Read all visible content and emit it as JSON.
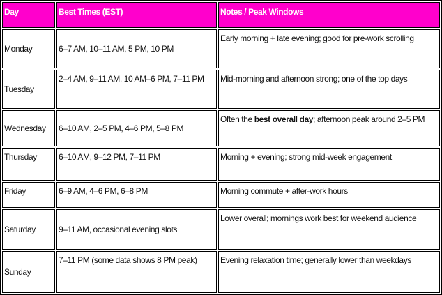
{
  "colors": {
    "header_bg": "#ff00cc",
    "header_text": "#ffffff"
  },
  "headers": [
    "Day",
    "Best Times (EST)",
    "Notes / Peak Windows"
  ],
  "rows": [
    {
      "day": "Monday",
      "times": "6–7 AM, 10–11 AM, 5 PM, 10 PM",
      "notes": "Early morning + late evening; good for pre-work scrolling"
    },
    {
      "day": "Tuesday",
      "times": "2–4 AM, 9–11 AM, 10  AM–6 PM, 7–11 PM",
      "notes": "Mid-morning and afternoon strong; one of the top days"
    },
    {
      "day": "Wednesday",
      "times": "6–10 AM, 2–5 PM, 4–6 PM, 5–8 PM",
      "notes_pre": "Often the ",
      "notes_bold": "best overall day",
      "notes_post": ";  afternoon peak around 2–5 PM"
    },
    {
      "day": "Thursday",
      "times": "6–10 AM, 9–12 PM, 7–11 PM",
      "notes": "Morning + evening; strong mid-week engagement"
    },
    {
      "day": "Friday",
      "times": "6–9 AM, 4–6 PM, 6–8 PM",
      "notes": "Morning commute + after-work hours"
    },
    {
      "day": "Saturday",
      "times": "9–11 AM, occasional evening slots",
      "notes": "Lower overall; mornings work best for weekend audience"
    },
    {
      "day": "Sunday",
      "times": "7–11 PM (some data shows 8 PM peak)",
      "notes": "Evening relaxation time; generally lower than weekdays"
    }
  ]
}
